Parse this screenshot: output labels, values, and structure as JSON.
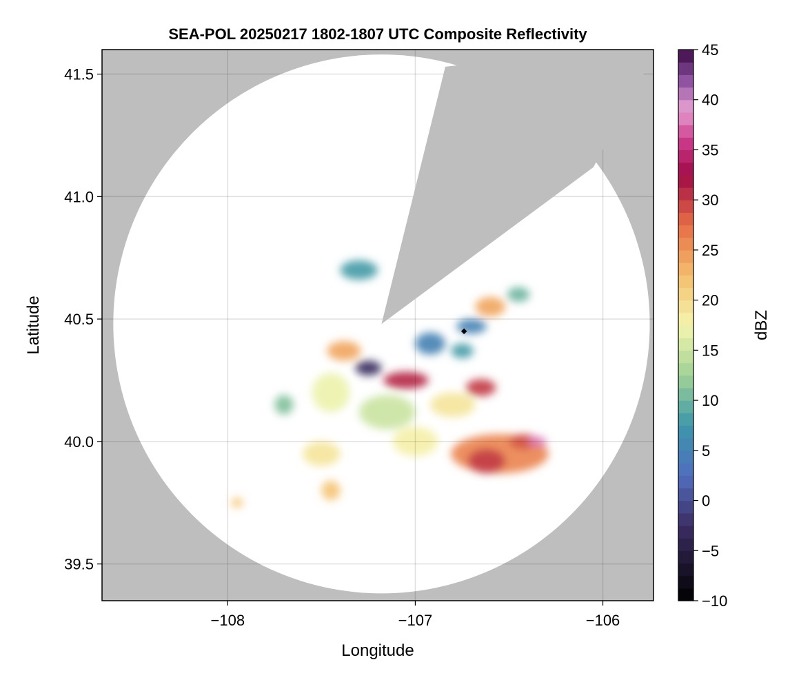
{
  "chart_data": {
    "type": "heatmap",
    "title": "SEA-POL 20250217 1802-1807 UTC Composite Reflectivity",
    "xlabel": "Longitude",
    "ylabel": "Latitude",
    "xlim": [
      -108.67,
      -105.73
    ],
    "ylim": [
      39.35,
      41.6
    ],
    "xticks": [
      -108,
      -107,
      -106
    ],
    "xtick_labels": [
      "−108",
      "−107",
      "−106"
    ],
    "yticks": [
      39.5,
      40.0,
      40.5,
      41.0,
      41.5
    ],
    "ytick_labels": [
      "39.5",
      "40.0",
      "40.5",
      "41.0",
      "41.5"
    ],
    "grid": true,
    "background_color": "#bebebe",
    "radar": {
      "center": {
        "lon": -107.18,
        "lat": 40.48
      },
      "max_range_lon_deg": 1.43,
      "max_range_lat_deg": 1.1,
      "blocked_sector": {
        "edge1": {
          "lon": -106.84,
          "lat": 41.53
        },
        "edge2": {
          "lon": -106.05,
          "lat": 41.12
        }
      },
      "marker": {
        "lon": -106.74,
        "lat": 40.45
      }
    },
    "colorbar": {
      "label": "dBZ",
      "min": -10,
      "max": 45,
      "step": 1.25,
      "ticks": [
        -10,
        -5,
        0,
        5,
        10,
        15,
        20,
        25,
        30,
        35,
        40,
        45
      ],
      "tick_labels": [
        "−10",
        "−5",
        "0",
        "5",
        "10",
        "15",
        "20",
        "25",
        "30",
        "35",
        "40",
        "45"
      ]
    },
    "reflectivity_cells": [
      {
        "lon": -106.55,
        "lat": 39.95,
        "rx": 0.26,
        "ry": 0.08,
        "dbz": 26
      },
      {
        "lon": -106.62,
        "lat": 39.92,
        "rx": 0.1,
        "ry": 0.05,
        "dbz": 30
      },
      {
        "lon": -106.42,
        "lat": 40.0,
        "rx": 0.08,
        "ry": 0.03,
        "dbz": 29
      },
      {
        "lon": -106.35,
        "lat": 40.0,
        "rx": 0.05,
        "ry": 0.02,
        "dbz": 38
      },
      {
        "lon": -106.92,
        "lat": 40.4,
        "rx": 0.08,
        "ry": 0.045,
        "dbz": 5
      },
      {
        "lon": -106.7,
        "lat": 40.47,
        "rx": 0.08,
        "ry": 0.03,
        "dbz": 5
      },
      {
        "lon": -106.75,
        "lat": 40.37,
        "rx": 0.06,
        "ry": 0.03,
        "dbz": 8
      },
      {
        "lon": -107.05,
        "lat": 40.25,
        "rx": 0.12,
        "ry": 0.035,
        "dbz": 31
      },
      {
        "lon": -106.65,
        "lat": 40.22,
        "rx": 0.08,
        "ry": 0.035,
        "dbz": 30
      },
      {
        "lon": -107.25,
        "lat": 40.3,
        "rx": 0.07,
        "ry": 0.03,
        "dbz": -3
      },
      {
        "lon": -107.38,
        "lat": 40.37,
        "rx": 0.09,
        "ry": 0.04,
        "dbz": 24
      },
      {
        "lon": -106.6,
        "lat": 40.55,
        "rx": 0.08,
        "ry": 0.04,
        "dbz": 24
      },
      {
        "lon": -107.45,
        "lat": 40.2,
        "rx": 0.1,
        "ry": 0.08,
        "dbz": 17
      },
      {
        "lon": -107.5,
        "lat": 39.95,
        "rx": 0.1,
        "ry": 0.05,
        "dbz": 19
      },
      {
        "lon": -107.0,
        "lat": 40.0,
        "rx": 0.12,
        "ry": 0.06,
        "dbz": 18
      },
      {
        "lon": -107.45,
        "lat": 39.8,
        "rx": 0.05,
        "ry": 0.04,
        "dbz": 22
      },
      {
        "lon": -107.3,
        "lat": 40.7,
        "rx": 0.1,
        "ry": 0.04,
        "dbz": 8
      },
      {
        "lon": -106.45,
        "lat": 40.6,
        "rx": 0.06,
        "ry": 0.03,
        "dbz": 10
      },
      {
        "lon": -107.7,
        "lat": 40.15,
        "rx": 0.05,
        "ry": 0.04,
        "dbz": 11
      },
      {
        "lon": -107.95,
        "lat": 39.75,
        "rx": 0.03,
        "ry": 0.02,
        "dbz": 22
      },
      {
        "lon": -107.15,
        "lat": 40.12,
        "rx": 0.15,
        "ry": 0.07,
        "dbz": 15
      },
      {
        "lon": -106.8,
        "lat": 40.15,
        "rx": 0.12,
        "ry": 0.05,
        "dbz": 19
      }
    ]
  }
}
